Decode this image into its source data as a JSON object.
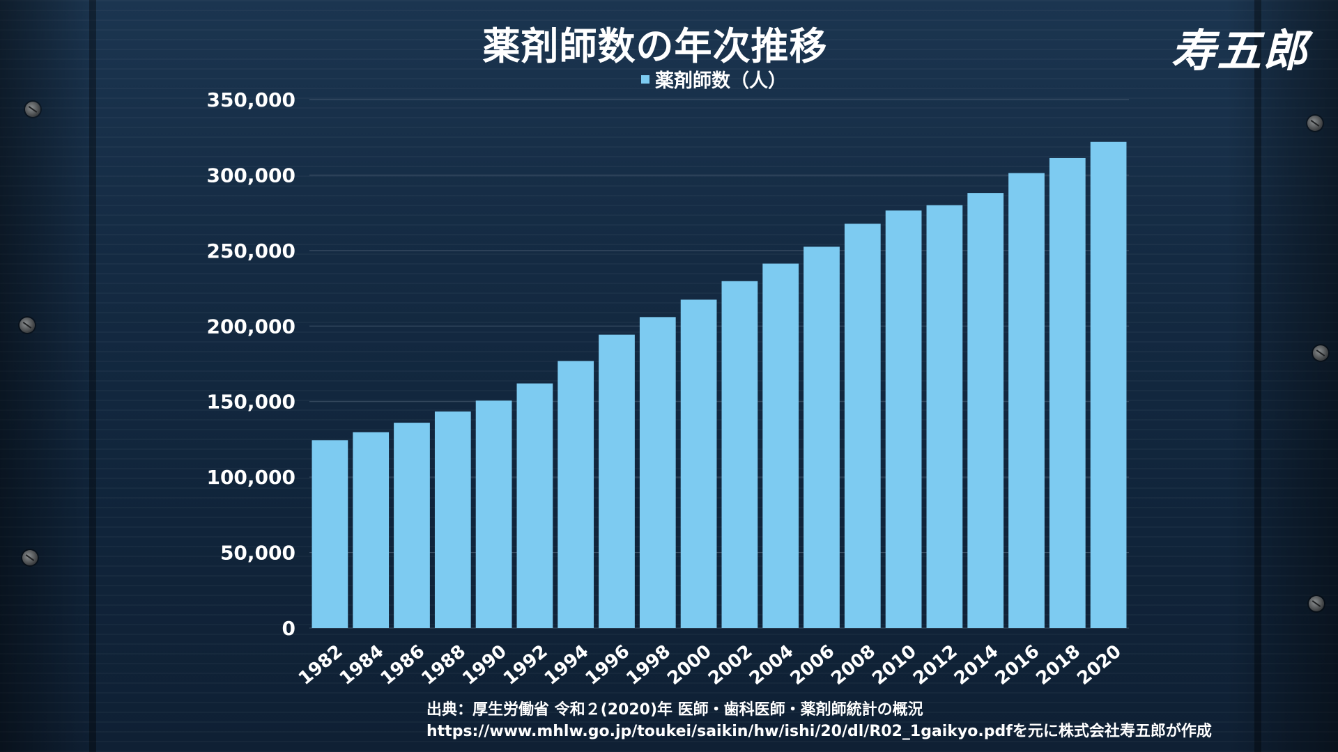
{
  "title": "薬剤師数の年次推移",
  "brand": "寿五郎",
  "legend_label": "薬剤師数（人）",
  "source_line1": "出典：厚生労働省 令和２(2020)年 医師・歯科医師・薬剤師統計の概況",
  "source_line2": "https://www.mhlw.go.jp/toukei/saikin/hw/ishi/20/dl/R02_1gaikyo.pdfを元に株式会社寿五郎が作成",
  "colors": {
    "bar": "#7dcbf1",
    "text": "#ffffff",
    "grid": "#5f7185"
  },
  "chart_data": {
    "type": "bar",
    "title": "薬剤師数の年次推移",
    "categories": [
      "1982",
      "1984",
      "1986",
      "1988",
      "1990",
      "1992",
      "1994",
      "1996",
      "1998",
      "2000",
      "2002",
      "2004",
      "2006",
      "2008",
      "2010",
      "2012",
      "2014",
      "2016",
      "2018",
      "2020"
    ],
    "series": [
      {
        "name": "薬剤師数（人）",
        "values": [
          124390,
          129700,
          135990,
          143429,
          150627,
          162021,
          176871,
          194300,
          205953,
          217477,
          229744,
          241369,
          252533,
          267751,
          276517,
          280052,
          288151,
          301323,
          311289,
          321982
        ]
      }
    ],
    "ylim": [
      0,
      350000
    ],
    "yticks": [
      0,
      50000,
      100000,
      150000,
      200000,
      250000,
      300000,
      350000
    ],
    "ytick_labels": [
      "0",
      "50,000",
      "100,000",
      "150,000",
      "200,000",
      "250,000",
      "300,000",
      "350,000"
    ],
    "grid": true,
    "legend_position": "top-center"
  }
}
